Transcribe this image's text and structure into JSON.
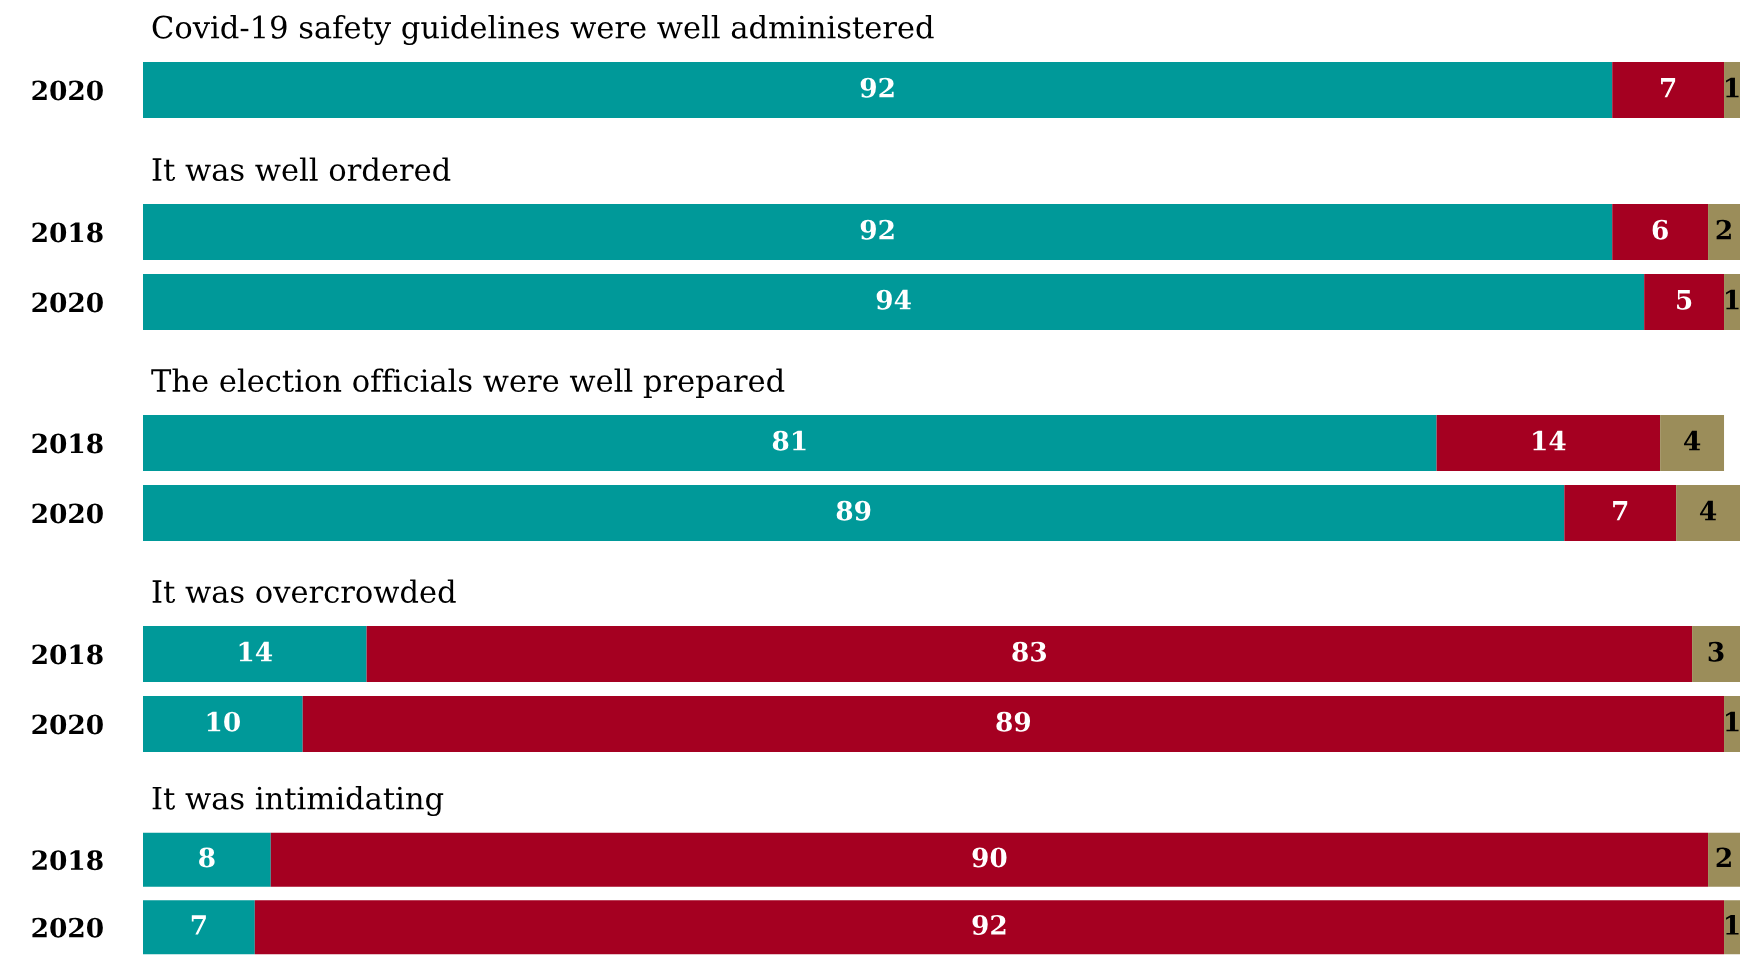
{
  "chart_data": [
    {
      "type": "bar",
      "orientation": "horizontal",
      "stacked": true,
      "title": "Covid-19 safety guidelines were well administered",
      "categories": [
        "2020"
      ],
      "xlim": [
        0,
        100
      ],
      "tick_labels": "y",
      "data_labels": true,
      "grid": false,
      "legend": false,
      "series": [
        {
          "color": "#009999",
          "values": [
            92
          ]
        },
        {
          "color": "#a50021",
          "values": [
            7
          ]
        },
        {
          "color": "#9b8d5a",
          "values": [
            1
          ]
        }
      ]
    },
    {
      "type": "bar",
      "orientation": "horizontal",
      "stacked": true,
      "title": "It was well ordered",
      "categories": [
        "2018",
        "2020"
      ],
      "xlim": [
        0,
        100
      ],
      "tick_labels": "y",
      "data_labels": true,
      "grid": false,
      "legend": false,
      "series": [
        {
          "color": "#009999",
          "values": [
            92,
            94
          ]
        },
        {
          "color": "#a50021",
          "values": [
            6,
            5
          ]
        },
        {
          "color": "#9b8d5a",
          "values": [
            2,
            1
          ]
        }
      ]
    },
    {
      "type": "bar",
      "orientation": "horizontal",
      "stacked": true,
      "title": "The election officials were well prepared",
      "categories": [
        "2018",
        "2020"
      ],
      "xlim": [
        0,
        100
      ],
      "tick_labels": "y",
      "data_labels": true,
      "grid": false,
      "legend": false,
      "series": [
        {
          "color": "#009999",
          "values": [
            81,
            89
          ]
        },
        {
          "color": "#a50021",
          "values": [
            14,
            7
          ]
        },
        {
          "color": "#9b8d5a",
          "values": [
            4,
            4
          ]
        }
      ]
    },
    {
      "type": "bar",
      "orientation": "horizontal",
      "stacked": true,
      "title": "It was overcrowded",
      "categories": [
        "2018",
        "2020"
      ],
      "xlim": [
        0,
        100
      ],
      "tick_labels": "y",
      "data_labels": true,
      "grid": false,
      "legend": false,
      "series": [
        {
          "color": "#009999",
          "values": [
            14,
            10
          ]
        },
        {
          "color": "#a50021",
          "values": [
            83,
            89
          ]
        },
        {
          "color": "#9b8d5a",
          "values": [
            3,
            1
          ]
        }
      ]
    },
    {
      "type": "bar",
      "orientation": "horizontal",
      "stacked": true,
      "title": "It was intimidating",
      "categories": [
        "2018",
        "2020"
      ],
      "xlim": [
        0,
        100
      ],
      "tick_labels": "y",
      "data_labels": true,
      "grid": false,
      "legend": false,
      "series": [
        {
          "color": "#009999",
          "values": [
            8,
            7
          ]
        },
        {
          "color": "#a50021",
          "values": [
            90,
            92
          ]
        },
        {
          "color": "#9b8d5a",
          "values": [
            2,
            1
          ]
        }
      ]
    }
  ]
}
